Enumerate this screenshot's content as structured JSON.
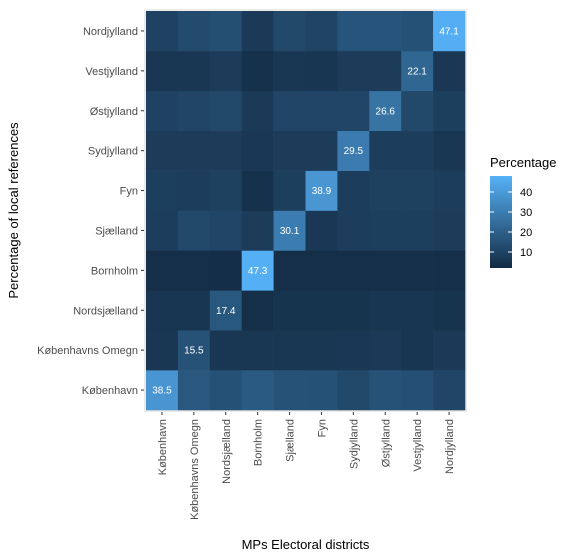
{
  "chart_data": {
    "type": "heatmap",
    "xlabel": "MPs Electoral districts",
    "ylabel": "Percentage of local references",
    "x_categories": [
      "København",
      "Københavns Omegn",
      "Nordsjælland",
      "Bornholm",
      "Sjælland",
      "Fyn",
      "Sydjylland",
      "Østjylland",
      "Vestjylland",
      "Nordjylland"
    ],
    "y_categories": [
      "København",
      "Københavns Omegn",
      "Nordsjælland",
      "Bornholm",
      "Sjælland",
      "Fyn",
      "Sydjylland",
      "Østjylland",
      "Vestjylland",
      "Nordjylland"
    ],
    "values": [
      [
        38.5,
        17.0,
        15.0,
        18.0,
        15.5,
        15.0,
        12.0,
        15.5,
        14.5,
        11.0
      ],
      [
        6.0,
        15.5,
        6.0,
        6.0,
        6.0,
        6.0,
        6.5,
        7.0,
        5.5,
        7.0
      ],
      [
        5.5,
        5.5,
        17.4,
        3.5,
        5.0,
        5.0,
        5.0,
        5.5,
        5.5,
        5.0
      ],
      [
        3.5,
        3.5,
        3.0,
        47.3,
        3.5,
        3.5,
        3.5,
        3.5,
        3.5,
        3.5
      ],
      [
        8.5,
        12.0,
        11.0,
        8.0,
        30.1,
        6.5,
        8.5,
        9.0,
        9.0,
        8.0
      ],
      [
        9.0,
        8.5,
        9.5,
        4.0,
        9.0,
        38.9,
        8.5,
        9.5,
        9.5,
        8.5
      ],
      [
        8.0,
        8.0,
        8.0,
        6.5,
        8.0,
        8.0,
        29.5,
        8.5,
        8.5,
        6.0
      ],
      [
        10.0,
        11.0,
        12.0,
        7.0,
        11.0,
        11.0,
        11.0,
        26.6,
        12.0,
        9.0
      ],
      [
        6.0,
        6.0,
        8.0,
        4.0,
        6.0,
        5.5,
        8.0,
        8.0,
        22.1,
        6.5
      ],
      [
        10.0,
        13.0,
        14.0,
        7.0,
        12.0,
        10.5,
        16.0,
        16.0,
        15.0,
        47.1
      ]
    ],
    "labels": [
      [
        "38.5",
        "",
        "",
        "",
        "",
        "",
        "",
        "",
        "",
        ""
      ],
      [
        "",
        "15.5",
        "",
        "",
        "",
        "",
        "",
        "",
        "",
        ""
      ],
      [
        "",
        "",
        "17.4",
        "",
        "",
        "",
        "",
        "",
        "",
        ""
      ],
      [
        "",
        "",
        "",
        "47.3",
        "",
        "",
        "",
        "",
        "",
        ""
      ],
      [
        "",
        "",
        "",
        "",
        "30.1",
        "",
        "",
        "",
        "",
        ""
      ],
      [
        "",
        "",
        "",
        "",
        "",
        "38.9",
        "",
        "",
        "",
        ""
      ],
      [
        "",
        "",
        "",
        "",
        "",
        "",
        "29.5",
        "",
        "",
        ""
      ],
      [
        "",
        "",
        "",
        "",
        "",
        "",
        "",
        "26.6",
        "",
        ""
      ],
      [
        "",
        "",
        "",
        "",
        "",
        "",
        "",
        "",
        "22.1",
        ""
      ],
      [
        "",
        "",
        "",
        "",
        "",
        "",
        "",
        "",
        "",
        "47.1"
      ]
    ],
    "color_scale": {
      "low": "#132B43",
      "high": "#56B1F7",
      "min": 2,
      "max": 48
    },
    "legend": {
      "title": "Percentage",
      "placement": "right",
      "entries": [
        {
          "label": "40",
          "value": 40
        },
        {
          "label": "30",
          "value": 30
        },
        {
          "label": "20",
          "value": 20
        },
        {
          "label": "10",
          "value": 10
        }
      ]
    },
    "panel_background": "#ebebeb"
  }
}
